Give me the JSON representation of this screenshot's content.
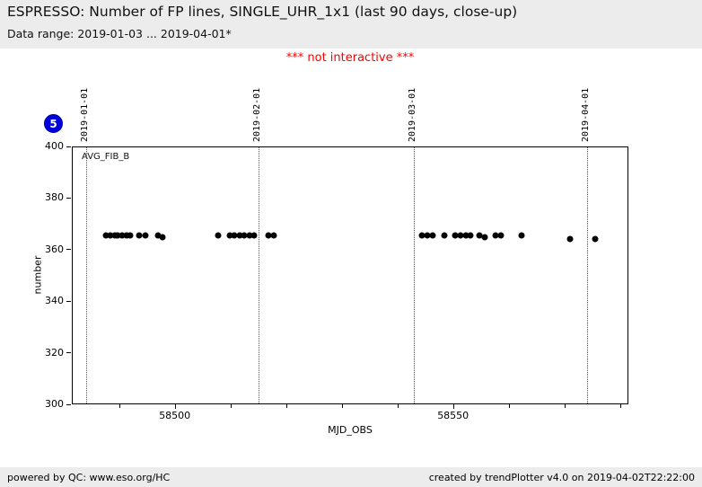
{
  "header": {
    "title": "ESPRESSO: Number of FP lines, SINGLE_UHR_1x1 (last 90 days, close-up)",
    "subtitle": "Data range: 2019-01-03 ... 2019-04-01*"
  },
  "notice": "*** not interactive ***",
  "badge": {
    "value": "5"
  },
  "footer": {
    "left": "powered by QC: www.eso.org/HC",
    "right": "created by trendPlotter v4.0 on 2019-04-02T22:22:00"
  },
  "colors": {
    "badge_blue": "#0000dd",
    "badge_border": "#000099",
    "notice_red": "#ff0000",
    "point_black": "#000000",
    "panel_gray": "#ececec"
  },
  "chart_data": {
    "type": "scatter",
    "title": "ESPRESSO: Number of FP lines, SINGLE_UHR_1x1 (last 90 days, close-up)",
    "xlabel": "MJD_OBS",
    "ylabel": "number",
    "legend_label": "AVG_FIB_B",
    "xlim": [
      58481.5,
      58581.5
    ],
    "ylim": [
      300,
      400
    ],
    "grid": "off",
    "y_ticks": [
      300,
      320,
      340,
      360,
      380,
      400
    ],
    "x_major_ticks": [
      {
        "mjd": 58500,
        "label": "58500"
      },
      {
        "mjd": 58550,
        "label": "58550"
      }
    ],
    "x_minor_ticks": [
      58490,
      58510,
      58520,
      58530,
      58540,
      58560,
      58570,
      58580
    ],
    "date_gridlines": [
      {
        "mjd": 58484,
        "label": "2019-01-01"
      },
      {
        "mjd": 58515,
        "label": "2019-02-01"
      },
      {
        "mjd": 58543,
        "label": "2019-03-01"
      },
      {
        "mjd": 58574,
        "label": "2019-04-01"
      }
    ],
    "series": [
      {
        "name": "AVG_FIB_B",
        "color": "#000000",
        "points": [
          [
            58487.4,
            366
          ],
          [
            58488.2,
            366
          ],
          [
            58489.0,
            366
          ],
          [
            58489.6,
            366
          ],
          [
            58490.4,
            366
          ],
          [
            58491.1,
            366
          ],
          [
            58491.9,
            366
          ],
          [
            58493.5,
            366
          ],
          [
            58494.5,
            366
          ],
          [
            58496.8,
            366
          ],
          [
            58497.6,
            365.3
          ],
          [
            58507.6,
            366
          ],
          [
            58509.7,
            366
          ],
          [
            58510.6,
            366
          ],
          [
            58511.5,
            366
          ],
          [
            58512.3,
            366
          ],
          [
            58513.2,
            366
          ],
          [
            58514.0,
            366
          ],
          [
            58516.6,
            366
          ],
          [
            58517.6,
            366
          ],
          [
            58544.2,
            366
          ],
          [
            58545.2,
            366
          ],
          [
            58546.1,
            366
          ],
          [
            58548.2,
            366
          ],
          [
            58550.2,
            366
          ],
          [
            58551.1,
            366
          ],
          [
            58552.1,
            366
          ],
          [
            58552.9,
            366
          ],
          [
            58554.5,
            366
          ],
          [
            58555.5,
            365.2
          ],
          [
            58557.4,
            366
          ],
          [
            58558.5,
            366
          ],
          [
            58562.1,
            366
          ],
          [
            58570.8,
            364.3
          ],
          [
            58575.3,
            364.6
          ]
        ]
      }
    ]
  }
}
